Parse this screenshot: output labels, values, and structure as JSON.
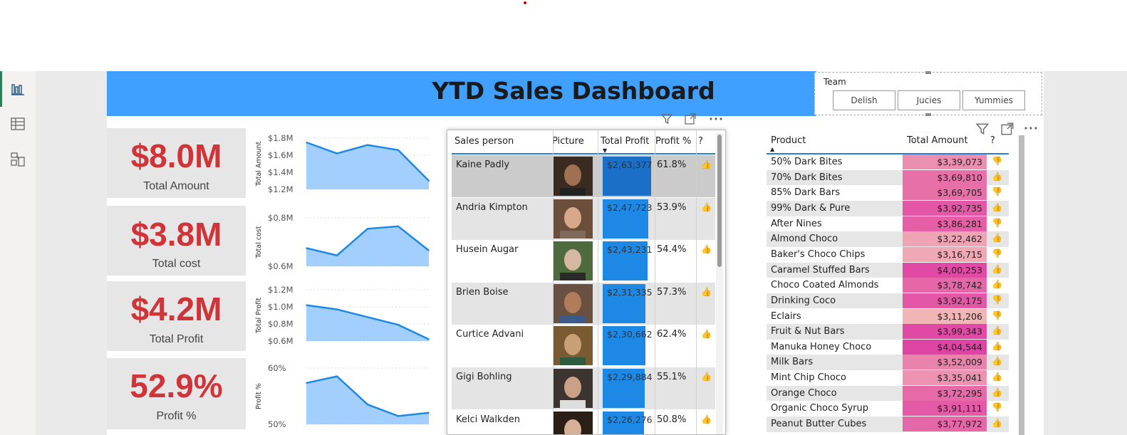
{
  "title": "YTD Sales Dashboard",
  "slicer": {
    "label": "Team",
    "options": [
      "Delish",
      "Jucies",
      "Yummies"
    ]
  },
  "kpis": [
    {
      "value": "$8.0M",
      "caption": "Total Amount"
    },
    {
      "value": "$3.8M",
      "caption": "Total cost"
    },
    {
      "value": "$4.2M",
      "caption": "Total Profit"
    },
    {
      "value": "52.9%",
      "caption": "Profit %"
    }
  ],
  "chart_data": [
    {
      "type": "area",
      "ylabel": "Total Amount",
      "ticks": [
        "$1.8M",
        "$1.6M",
        "$1.4M",
        "$1.2M"
      ],
      "ylim": [
        1.2,
        1.8
      ],
      "values": [
        1.75,
        1.62,
        1.72,
        1.66,
        1.3
      ]
    },
    {
      "type": "area",
      "ylabel": "Total cost",
      "ticks": [
        "$0.8M",
        "$0.6M"
      ],
      "ylim": [
        0.57,
        0.97
      ],
      "values": [
        0.72,
        0.66,
        0.88,
        0.9,
        0.7
      ]
    },
    {
      "type": "area",
      "ylabel": "Total Profit",
      "ticks": [
        "$1.2M",
        "$1.0M",
        "$0.8M",
        "$0.6M"
      ],
      "ylim": [
        0.6,
        1.2
      ],
      "values": [
        1.02,
        0.97,
        0.88,
        0.79,
        0.62
      ]
    },
    {
      "type": "area",
      "ylabel": "Profit %",
      "ticks": [
        "60%",
        "50%"
      ],
      "ylim": [
        45,
        62
      ],
      "values": [
        57.5,
        59.5,
        51.0,
        47.5,
        48.5
      ]
    }
  ],
  "sales_table": {
    "headers": [
      "Sales person",
      "Picture",
      "Total Profit",
      "Profit %",
      "?"
    ],
    "rows": [
      {
        "name": "Kaine Padly",
        "profit": "$2,63,377",
        "profit_value": 263377,
        "pct": "61.8%",
        "selected": true
      },
      {
        "name": "Andria Kimpton",
        "profit": "$2,47,723",
        "profit_value": 247723,
        "pct": "53.9%"
      },
      {
        "name": "Husein Augar",
        "profit": "$2,43,231",
        "profit_value": 243231,
        "pct": "54.4%"
      },
      {
        "name": "Brien Boise",
        "profit": "$2,31,335",
        "profit_value": 231335,
        "pct": "57.3%"
      },
      {
        "name": "Curtice Advani",
        "profit": "$2,30,662",
        "profit_value": 230662,
        "pct": "62.4%"
      },
      {
        "name": "Gigi Bohling",
        "profit": "$2,29,884",
        "profit_value": 229884,
        "pct": "55.1%"
      },
      {
        "name": "Kelci Walkden",
        "profit": "$2,26,276",
        "profit_value": 226276,
        "pct": "50.8%"
      }
    ]
  },
  "product_table": {
    "headers": [
      "Product",
      "Total Amount",
      "?"
    ],
    "rows": [
      {
        "name": "50% Dark Bites",
        "amount": "$3,39,073",
        "color": "#ea8fb0",
        "down": true
      },
      {
        "name": "70% Dark Bites",
        "amount": "$3,69,810",
        "color": "#e770a8",
        "down": false
      },
      {
        "name": "85% Dark Bars",
        "amount": "$3,69,705",
        "color": "#e770a8",
        "down": true
      },
      {
        "name": "99% Dark & Pure",
        "amount": "$3,92,735",
        "color": "#e457a6",
        "down": false
      },
      {
        "name": "After Nines",
        "amount": "$3,86,281",
        "color": "#e55ea6",
        "down": true
      },
      {
        "name": "Almond Choco",
        "amount": "$3,22,462",
        "color": "#eea4b4",
        "down": false
      },
      {
        "name": "Baker's Choco Chips",
        "amount": "$3,16,715",
        "color": "#efa9b4",
        "down": true
      },
      {
        "name": "Caramel Stuffed Bars",
        "amount": "$4,00,253",
        "color": "#e04aa4",
        "down": false
      },
      {
        "name": "Choco Coated Almonds",
        "amount": "$3,78,742",
        "color": "#e667a7",
        "down": false
      },
      {
        "name": "Drinking Coco",
        "amount": "$3,92,175",
        "color": "#e457a6",
        "down": true
      },
      {
        "name": "Eclairs",
        "amount": "$3,11,206",
        "color": "#f0b5b4",
        "down": true
      },
      {
        "name": "Fruit & Nut Bars",
        "amount": "$3,99,343",
        "color": "#e04aa4",
        "down": false
      },
      {
        "name": "Manuka Honey Choco",
        "amount": "$4,04,544",
        "color": "#de44a3",
        "down": false
      },
      {
        "name": "Milk Bars",
        "amount": "$3,52,009",
        "color": "#e983ab",
        "down": false
      },
      {
        "name": "Mint Chip Choco",
        "amount": "$3,35,041",
        "color": "#eb93b1",
        "down": false
      },
      {
        "name": "Orange Choco",
        "amount": "$3,72,295",
        "color": "#e66aa8",
        "down": false
      },
      {
        "name": "Organic Choco Syrup",
        "amount": "$3,91,111",
        "color": "#e45aa6",
        "down": true
      },
      {
        "name": "Peanut Butter Cubes",
        "amount": "$3,77,972",
        "color": "#e667a7",
        "down": false
      }
    ]
  },
  "colors": {
    "banner": "#3fa0ff",
    "kpi_value": "#d13438",
    "area_fill": "#a3cfff",
    "area_line": "#1e88e5",
    "bar": "#1e88e5"
  },
  "icons": [
    "report-view-icon",
    "table-view-icon",
    "model-view-icon",
    "filter-icon",
    "focus-mode-icon",
    "more-options-icon"
  ]
}
